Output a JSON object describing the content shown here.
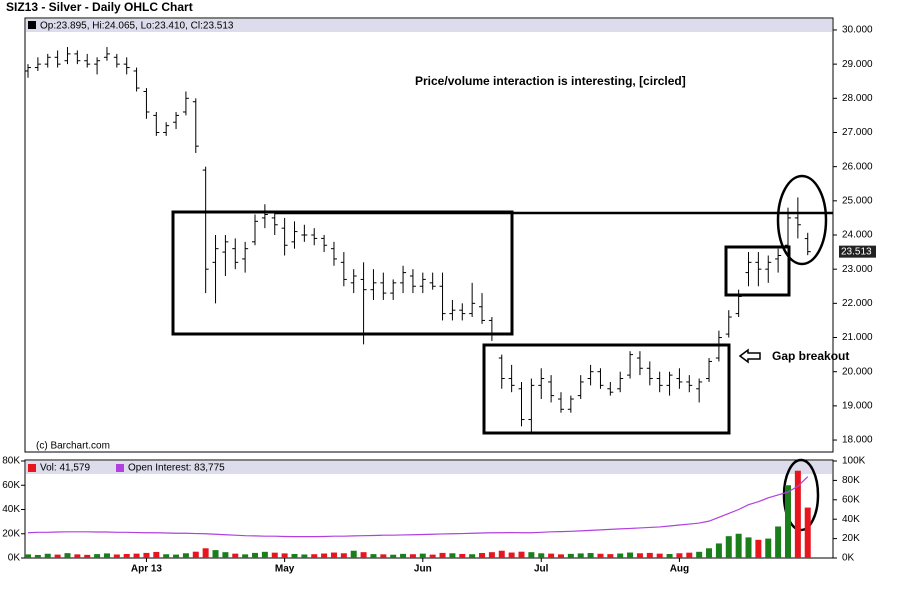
{
  "chart_data": [
    {
      "type": "ohlc",
      "title": "SIZ13 - Silver - Daily OHLC Chart",
      "credit": "(c) Barchart.com",
      "annotations": [
        "Price/volume interaction is interesting, [circled]",
        "Gap breakout"
      ],
      "ylim": [
        17.65,
        30.35
      ],
      "yticks": [
        {
          "value": 18,
          "label": "18.000"
        },
        {
          "value": 19,
          "label": "19.000"
        },
        {
          "value": 20,
          "label": "20.000"
        },
        {
          "value": 21,
          "label": "21.000"
        },
        {
          "value": 22,
          "label": "22.000"
        },
        {
          "value": 23,
          "label": "23.000"
        },
        {
          "value": 24,
          "label": "24.000"
        },
        {
          "value": 25,
          "label": "25.000"
        },
        {
          "value": 26,
          "label": "26.000"
        },
        {
          "value": 27,
          "label": "27.000"
        },
        {
          "value": 28,
          "label": "28.000"
        },
        {
          "value": 29,
          "label": "29.000"
        },
        {
          "value": 30,
          "label": "30.000"
        }
      ],
      "last_label": {
        "value": 23.513,
        "label": "23.513"
      },
      "grid": false,
      "series": [
        {
          "name": "Op:23.895, Hi:24.065, Lo:23.410, Cl:23.513",
          "color": "#000000",
          "open": [
            28.8,
            28.9,
            29.0,
            29.2,
            29.1,
            29.3,
            29.1,
            29.0,
            29.2,
            29.2,
            29.0,
            28.8,
            28.2,
            27.5,
            27.0,
            27.3,
            27.6,
            27.9,
            25.9,
            23.2,
            23.5,
            23.6,
            23.3,
            23.8,
            24.5,
            24.5,
            24.2,
            23.8,
            24.0,
            24.0,
            23.9,
            23.6,
            23.2,
            22.6,
            22.7,
            22.4,
            22.6,
            22.3,
            22.6,
            22.8,
            22.5,
            22.6,
            22.5,
            21.7,
            21.8,
            21.7,
            21.9,
            21.5,
            20.4,
            19.8,
            19.5,
            18.6,
            19.6,
            19.7,
            19.2,
            18.9,
            19.3,
            19.8,
            20.0,
            19.5,
            19.5,
            19.9,
            20.4,
            20.1,
            19.8,
            19.6,
            19.8,
            19.7,
            19.5,
            19.8,
            20.4,
            21.1,
            21.7,
            22.9,
            23.2,
            23.0,
            23.3,
            23.7,
            24.5,
            23.895
          ],
          "high": [
            29.0,
            29.2,
            29.3,
            29.4,
            29.5,
            29.4,
            29.3,
            29.2,
            29.5,
            29.3,
            29.2,
            28.9,
            28.3,
            27.6,
            27.3,
            27.6,
            28.2,
            28.0,
            26.0,
            24.0,
            24.0,
            23.9,
            23.8,
            24.6,
            24.9,
            24.7,
            24.5,
            24.4,
            24.3,
            24.2,
            24.0,
            23.8,
            23.5,
            23.0,
            23.2,
            23.0,
            22.9,
            22.7,
            23.1,
            23.0,
            22.9,
            22.9,
            22.9,
            22.1,
            22.0,
            22.6,
            22.3,
            21.6,
            20.5,
            20.2,
            19.7,
            19.8,
            20.1,
            19.9,
            19.4,
            19.3,
            19.9,
            20.2,
            20.1,
            19.7,
            20.0,
            20.6,
            20.6,
            20.3,
            20.0,
            20.0,
            20.1,
            19.9,
            19.8,
            20.4,
            21.2,
            21.8,
            22.4,
            23.5,
            23.5,
            23.4,
            23.6,
            24.8,
            25.1,
            24.065
          ],
          "low": [
            28.6,
            28.8,
            28.9,
            28.9,
            29.0,
            29.0,
            28.9,
            28.7,
            29.1,
            28.9,
            28.7,
            28.2,
            27.4,
            26.9,
            26.9,
            27.1,
            27.5,
            26.4,
            22.3,
            22.0,
            22.8,
            23.0,
            22.9,
            23.7,
            24.2,
            24.0,
            23.4,
            23.6,
            23.8,
            23.7,
            23.5,
            23.1,
            22.5,
            22.3,
            20.8,
            22.1,
            22.1,
            22.1,
            22.3,
            22.3,
            22.3,
            22.4,
            21.5,
            21.5,
            21.5,
            21.6,
            21.4,
            20.9,
            19.5,
            19.4,
            18.4,
            18.2,
            19.2,
            19.1,
            18.8,
            18.8,
            19.2,
            19.6,
            19.5,
            19.3,
            19.4,
            19.8,
            19.9,
            19.6,
            19.4,
            19.3,
            19.5,
            19.4,
            19.1,
            19.7,
            20.3,
            21.0,
            21.6,
            22.5,
            22.5,
            22.6,
            22.9,
            23.4,
            23.9,
            23.41
          ],
          "close": [
            28.9,
            29.0,
            29.2,
            29.0,
            29.3,
            29.1,
            29.0,
            29.1,
            29.3,
            29.0,
            28.9,
            28.3,
            27.6,
            27.0,
            27.2,
            27.5,
            28.0,
            26.6,
            23.0,
            23.6,
            23.8,
            23.2,
            23.6,
            24.4,
            24.6,
            24.3,
            23.7,
            24.1,
            24.0,
            23.9,
            23.7,
            23.3,
            22.7,
            22.8,
            22.4,
            22.6,
            22.3,
            22.6,
            22.9,
            22.5,
            22.7,
            22.5,
            21.7,
            21.8,
            21.7,
            22.0,
            21.5,
            21.1,
            19.8,
            19.6,
            18.6,
            19.6,
            19.8,
            19.3,
            18.9,
            19.2,
            19.7,
            20.0,
            19.6,
            19.4,
            19.8,
            20.5,
            20.1,
            19.8,
            19.6,
            19.9,
            19.7,
            19.6,
            19.7,
            20.3,
            21.0,
            21.6,
            22.2,
            23.2,
            23.0,
            23.2,
            23.4,
            24.5,
            24.3,
            23.513
          ]
        }
      ]
    },
    {
      "type": "bar",
      "categories": [
        null,
        null,
        null,
        null,
        null,
        null,
        null,
        null,
        null,
        null,
        null,
        null,
        "Apr 13",
        null,
        null,
        null,
        null,
        null,
        null,
        null,
        null,
        null,
        null,
        null,
        null,
        null,
        "May",
        null,
        null,
        null,
        null,
        null,
        null,
        null,
        null,
        null,
        null,
        null,
        null,
        null,
        "Jun",
        null,
        null,
        null,
        null,
        null,
        null,
        null,
        null,
        null,
        null,
        null,
        "Jul",
        null,
        null,
        null,
        null,
        null,
        null,
        null,
        null,
        null,
        null,
        null,
        null,
        null,
        "Aug",
        null,
        null,
        null,
        null,
        null,
        null,
        null,
        null,
        null,
        null,
        null,
        null,
        null
      ],
      "ylim": [
        0,
        80000
      ],
      "yticks": [
        {
          "value": 0,
          "label": "0K"
        },
        {
          "value": 20000,
          "label": "20K"
        },
        {
          "value": 40000,
          "label": "40K"
        },
        {
          "value": 60000,
          "label": "60K"
        },
        {
          "value": 80000,
          "label": "80K"
        }
      ],
      "y2lim": [
        0,
        100000
      ],
      "y2ticks": [
        {
          "value": 0,
          "label": "0K"
        },
        {
          "value": 20000,
          "label": "20K"
        },
        {
          "value": 40000,
          "label": "40K"
        },
        {
          "value": 60000,
          "label": "60K"
        },
        {
          "value": 80000,
          "label": "80K"
        },
        {
          "value": 100000,
          "label": "100K"
        }
      ],
      "series": [
        {
          "name": "Vol: 41,579",
          "color": "#e8141e",
          "up_color": "#1a7f1a",
          "down_color": "#e8141e",
          "values": [
            3000,
            2500,
            3500,
            2800,
            4000,
            3000,
            2600,
            3200,
            3800,
            2900,
            3300,
            3600,
            4200,
            5000,
            3100,
            2800,
            3900,
            5200,
            8000,
            6500,
            4800,
            3600,
            3000,
            4200,
            5100,
            4400,
            3800,
            3300,
            2900,
            3100,
            3700,
            4500,
            3900,
            6000,
            4800,
            3200,
            3000,
            2700,
            3400,
            3100,
            3600,
            2800,
            4200,
            3900,
            3300,
            3100,
            4100,
            4800,
            6000,
            4500,
            5200,
            4800,
            3900,
            3600,
            3000,
            3400,
            3800,
            4100,
            3500,
            3200,
            3700,
            4500,
            3900,
            4200,
            3600,
            3300,
            3900,
            4400,
            5100,
            8000,
            12000,
            18000,
            20000,
            17000,
            15000,
            16000,
            26000,
            60000,
            72000,
            41579
          ]
        },
        {
          "name": "Open Interest: 83,775",
          "color": "#b040e0",
          "axis": "y2",
          "type": "line",
          "values": [
            26000,
            26500,
            26500,
            26800,
            27000,
            27000,
            27000,
            26800,
            26800,
            26500,
            26500,
            26200,
            26000,
            26000,
            25800,
            25500,
            25500,
            25200,
            25000,
            24500,
            24000,
            23500,
            23000,
            22800,
            22500,
            22500,
            22200,
            22000,
            22000,
            22000,
            22200,
            22500,
            22500,
            22800,
            23000,
            23200,
            23500,
            23500,
            23800,
            24000,
            24200,
            24500,
            24800,
            25000,
            25200,
            25500,
            25800,
            26000,
            26000,
            26200,
            26000,
            26000,
            26500,
            27000,
            27200,
            27500,
            28000,
            28500,
            29000,
            29500,
            30000,
            30500,
            31000,
            31500,
            32000,
            33000,
            34000,
            35000,
            36000,
            38000,
            42000,
            46000,
            50000,
            55000,
            58000,
            62000,
            65000,
            68000,
            74000,
            83775
          ]
        }
      ]
    }
  ]
}
